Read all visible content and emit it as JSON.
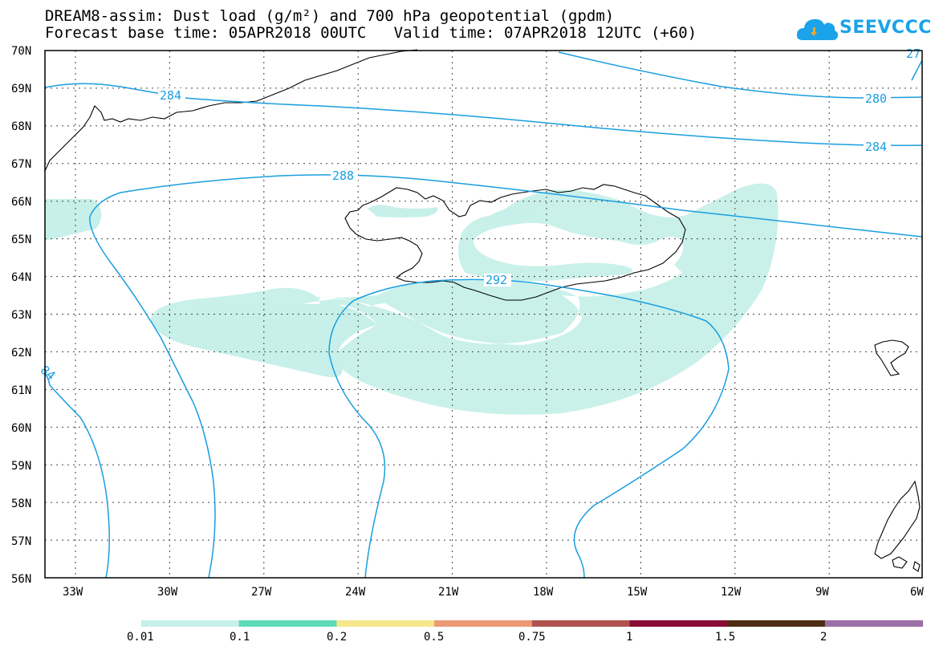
{
  "title": {
    "line1": "DREAM8-assim: Dust load (g/m²) and 700 hPa geopotential (gpdm)",
    "line2": "Forecast base time: 05APR2018 00UTC   Valid time: 07APR2018 12UTC (+60)"
  },
  "logo": {
    "text": "SEEVCCC",
    "icon": "cloud-icon"
  },
  "latitude_labels": [
    "70N",
    "69N",
    "68N",
    "67N",
    "66N",
    "65N",
    "64N",
    "63N",
    "62N",
    "61N",
    "60N",
    "59N",
    "58N",
    "57N",
    "56N"
  ],
  "longitude_labels": [
    "33W",
    "30W",
    "27W",
    "24W",
    "21W",
    "18W",
    "15W",
    "12W",
    "9W",
    "6W"
  ],
  "contour_labels": [
    {
      "text": "284"
    },
    {
      "text": "280"
    },
    {
      "text": "284"
    },
    {
      "text": "288"
    },
    {
      "text": "292"
    },
    {
      "text": "84"
    },
    {
      "text": "27"
    }
  ],
  "legend": {
    "colors": [
      "#c6f0e9",
      "#5ddbb6",
      "#f6e78b",
      "#ec9a76",
      "#b0534f",
      "#8a0c35",
      "#4d2c14",
      "#9b70a6"
    ],
    "labels": [
      "0.01",
      "0.1",
      "0.2",
      "0.5",
      "0.75",
      "1",
      "1.5",
      "2"
    ]
  },
  "colors": {
    "contour": "#1a9ee0",
    "dust_fill": "#c6f0e9"
  }
}
